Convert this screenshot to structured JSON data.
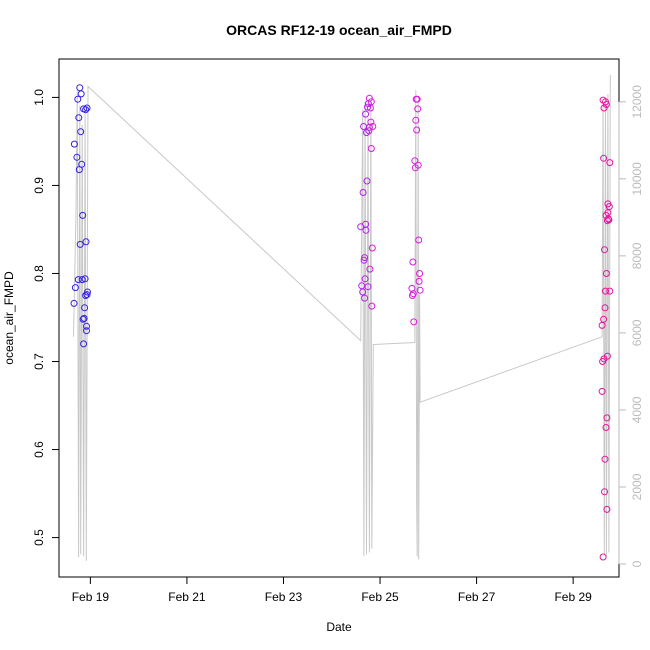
{
  "chart_data": {
    "type": "scatter",
    "title": "ORCAS RF12-19 ocean_air_FMPD",
    "xlabel": "Date",
    "ylabel": "ocean_air_FMPD",
    "x_tick_labels": [
      "Feb 19",
      "Feb 21",
      "Feb 23",
      "Feb 25",
      "Feb 27",
      "Feb 29"
    ],
    "x_tick_days": [
      19,
      21,
      23,
      25,
      27,
      29
    ],
    "xlim_days": [
      18.35,
      29.95
    ],
    "ylim": [
      0.47,
      1.03
    ],
    "y_ticks": [
      0.5,
      0.6,
      0.7,
      0.8,
      0.9,
      1.0
    ],
    "y_tick_labels": [
      "0.5",
      "0.6",
      "0.7",
      "0.8",
      "0.9",
      "1.0"
    ],
    "y2lim": [
      0,
      12800
    ],
    "y2_ticks": [
      0,
      2000,
      4000,
      6000,
      8000,
      10000,
      12000
    ],
    "y2_tick_labels": [
      "0",
      "2000",
      "4000",
      "6000",
      "8000",
      "10000",
      "12000"
    ],
    "grid": false,
    "colors": {
      "flight1": "#3322dd",
      "flight2": "#b422e6",
      "flight3": "#d91ddb",
      "flight4": "#e3169e",
      "altitude_line": "#c8c8c8",
      "axis": "#000000",
      "right_axis": "#bbbbbb"
    },
    "series": [
      {
        "color": "#3322dd",
        "points": [
          {
            "day": 18.66,
            "value": 0.766
          },
          {
            "day": 18.67,
            "value": 0.947
          },
          {
            "day": 18.69,
            "value": 0.784
          },
          {
            "day": 18.72,
            "value": 0.932
          },
          {
            "day": 18.74,
            "value": 0.998
          },
          {
            "day": 18.75,
            "value": 0.793
          },
          {
            "day": 18.76,
            "value": 0.977
          },
          {
            "day": 18.77,
            "value": 0.918
          },
          {
            "day": 18.78,
            "value": 1.011
          },
          {
            "day": 18.79,
            "value": 0.833
          },
          {
            "day": 18.8,
            "value": 0.961
          },
          {
            "day": 18.81,
            "value": 1.004
          },
          {
            "day": 18.82,
            "value": 0.924
          },
          {
            "day": 18.83,
            "value": 0.793
          },
          {
            "day": 18.84,
            "value": 0.866
          },
          {
            "day": 18.85,
            "value": 0.748
          },
          {
            "day": 18.86,
            "value": 0.72
          },
          {
            "day": 18.86,
            "value": 0.987
          },
          {
            "day": 18.87,
            "value": 0.749
          },
          {
            "day": 18.88,
            "value": 0.761
          },
          {
            "day": 18.89,
            "value": 0.794
          },
          {
            "day": 18.9,
            "value": 0.775
          },
          {
            "day": 18.9,
            "value": 0.986
          },
          {
            "day": 18.91,
            "value": 0.836
          },
          {
            "day": 18.92,
            "value": 0.735
          },
          {
            "day": 18.92,
            "value": 0.74
          },
          {
            "day": 18.93,
            "value": 0.776
          },
          {
            "day": 18.93,
            "value": 0.988
          },
          {
            "day": 18.94,
            "value": 0.779
          }
        ]
      },
      {
        "color": "#b422e6",
        "points": [
          {
            "day": 24.6,
            "value": 0.853
          },
          {
            "day": 24.62,
            "value": 0.786
          },
          {
            "day": 24.64,
            "value": 0.779
          },
          {
            "day": 24.65,
            "value": 0.892
          },
          {
            "day": 24.66,
            "value": 0.967
          },
          {
            "day": 24.67,
            "value": 0.815
          },
          {
            "day": 24.68,
            "value": 0.818
          },
          {
            "day": 24.68,
            "value": 0.772
          },
          {
            "day": 24.69,
            "value": 0.794
          },
          {
            "day": 24.7,
            "value": 0.856
          },
          {
            "day": 24.7,
            "value": 0.981
          },
          {
            "day": 24.71,
            "value": 0.849
          },
          {
            "day": 24.72,
            "value": 0.96
          },
          {
            "day": 24.73,
            "value": 0.905
          },
          {
            "day": 24.74,
            "value": 0.989
          },
          {
            "day": 24.75,
            "value": 0.785
          },
          {
            "day": 24.76,
            "value": 0.993
          },
          {
            "day": 24.77,
            "value": 0.962
          },
          {
            "day": 24.78,
            "value": 0.966
          }
        ]
      },
      {
        "color": "#d91ddb",
        "points": [
          {
            "day": 24.78,
            "value": 0.999
          },
          {
            "day": 24.79,
            "value": 0.805
          },
          {
            "day": 24.8,
            "value": 0.988
          },
          {
            "day": 24.81,
            "value": 0.972
          },
          {
            "day": 24.82,
            "value": 0.995
          },
          {
            "day": 24.82,
            "value": 0.942
          },
          {
            "day": 24.83,
            "value": 0.763
          },
          {
            "day": 24.84,
            "value": 0.829
          },
          {
            "day": 24.85,
            "value": 0.967
          },
          {
            "day": 25.66,
            "value": 0.783
          },
          {
            "day": 25.67,
            "value": 0.775
          },
          {
            "day": 25.68,
            "value": 0.813
          },
          {
            "day": 25.69,
            "value": 0.777
          },
          {
            "day": 25.7,
            "value": 0.745
          },
          {
            "day": 25.72,
            "value": 0.928
          },
          {
            "day": 25.73,
            "value": 0.92
          },
          {
            "day": 25.74,
            "value": 0.974
          },
          {
            "day": 25.75,
            "value": 0.998
          },
          {
            "day": 25.76,
            "value": 0.963
          },
          {
            "day": 25.77,
            "value": 0.998
          },
          {
            "day": 25.78,
            "value": 0.987
          },
          {
            "day": 25.79,
            "value": 0.923
          },
          {
            "day": 25.8,
            "value": 0.838
          },
          {
            "day": 25.81,
            "value": 0.791
          },
          {
            "day": 25.82,
            "value": 0.8
          },
          {
            "day": 25.83,
            "value": 0.781
          }
        ]
      },
      {
        "color": "#e3169e",
        "points": [
          {
            "day": 29.6,
            "value": 0.666
          },
          {
            "day": 29.6,
            "value": 0.741
          },
          {
            "day": 29.61,
            "value": 0.7
          },
          {
            "day": 29.62,
            "value": 0.478
          },
          {
            "day": 29.62,
            "value": 0.997
          },
          {
            "day": 29.63,
            "value": 0.931
          },
          {
            "day": 29.63,
            "value": 0.748
          },
          {
            "day": 29.64,
            "value": 0.703
          },
          {
            "day": 29.64,
            "value": 0.988
          },
          {
            "day": 29.65,
            "value": 0.552
          },
          {
            "day": 29.65,
            "value": 0.827
          },
          {
            "day": 29.66,
            "value": 0.761
          },
          {
            "day": 29.66,
            "value": 0.589
          },
          {
            "day": 29.67,
            "value": 0.995
          },
          {
            "day": 29.67,
            "value": 0.78
          },
          {
            "day": 29.68,
            "value": 0.625
          },
          {
            "day": 29.68,
            "value": 0.866
          },
          {
            "day": 29.69,
            "value": 0.992
          },
          {
            "day": 29.69,
            "value": 0.8
          },
          {
            "day": 29.7,
            "value": 0.636
          },
          {
            "day": 29.7,
            "value": 0.532
          },
          {
            "day": 29.71,
            "value": 0.706
          },
          {
            "day": 29.71,
            "value": 0.86
          },
          {
            "day": 29.72,
            "value": 0.879
          },
          {
            "day": 29.72,
            "value": 0.869
          },
          {
            "day": 29.73,
            "value": 0.862
          },
          {
            "day": 29.74,
            "value": 0.861
          },
          {
            "day": 29.75,
            "value": 0.876
          },
          {
            "day": 29.76,
            "value": 0.926
          },
          {
            "day": 29.76,
            "value": 0.78
          }
        ]
      }
    ],
    "altitude_line": {
      "axis": "right",
      "color": "#c8c8c8",
      "points": [
        [
          18.65,
          5900
        ],
        [
          18.7,
          9000
        ],
        [
          18.73,
          12300
        ],
        [
          18.755,
          180
        ],
        [
          18.78,
          11900
        ],
        [
          18.8,
          250
        ],
        [
          18.83,
          11400
        ],
        [
          18.86,
          200
        ],
        [
          18.89,
          11700
        ],
        [
          18.915,
          80
        ],
        [
          18.95,
          12400
        ],
        [
          24.6,
          5800
        ],
        [
          24.64,
          11800
        ],
        [
          24.665,
          200
        ],
        [
          24.69,
          12000
        ],
        [
          24.72,
          250
        ],
        [
          24.75,
          11600
        ],
        [
          24.78,
          300
        ],
        [
          24.81,
          12000
        ],
        [
          24.83,
          400
        ],
        [
          24.86,
          5700
        ],
        [
          25.72,
          5750
        ],
        [
          25.74,
          12300
        ],
        [
          25.76,
          1500
        ],
        [
          25.77,
          200
        ],
        [
          25.79,
          12000
        ],
        [
          25.8,
          120
        ],
        [
          25.82,
          7000
        ],
        [
          25.83,
          4200
        ],
        [
          29.6,
          5900
        ],
        [
          29.62,
          11900
        ],
        [
          29.645,
          250
        ],
        [
          29.67,
          12100
        ],
        [
          29.69,
          200
        ],
        [
          29.72,
          12200
        ],
        [
          29.74,
          300
        ],
        [
          29.77,
          12600
        ],
        [
          29.78,
          12700
        ]
      ]
    }
  }
}
